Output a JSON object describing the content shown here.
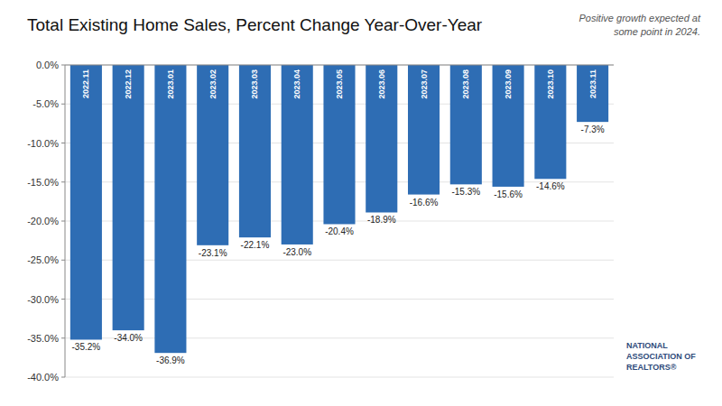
{
  "chart_data": {
    "type": "bar",
    "title": "Total Existing Home Sales, Percent Change Year-Over-Year",
    "annotation": "Positive growth expected at\nsome point in 2024.",
    "source": "NATIONAL\nASSOCIATION OF\nREALTORS®",
    "categories": [
      "2022.11",
      "2022.12",
      "2023.01",
      "2023.02",
      "2023.03",
      "2023.04",
      "2023.05",
      "2023.06",
      "2023.07",
      "2023.08",
      "2023.09",
      "2023.10",
      "2023.11"
    ],
    "values": [
      -35.2,
      -34.0,
      -36.9,
      -23.1,
      -22.1,
      -23.0,
      -20.4,
      -18.9,
      -16.6,
      -15.3,
      -15.6,
      -14.6,
      -7.3
    ],
    "value_labels": [
      "-35.2%",
      "-34.0%",
      "-36.9%",
      "-23.1%",
      "-22.1%",
      "-23.0%",
      "-20.4%",
      "-18.9%",
      "-16.6%",
      "-15.3%",
      "-15.6%",
      "-14.6%",
      "-7.3%"
    ],
    "color": "#2E6DB4",
    "ylim": [
      -40.0,
      0.0
    ],
    "yticks": [
      {
        "value": 0.0,
        "label": "0.0%"
      },
      {
        "value": -5.0,
        "label": "-5.0%"
      },
      {
        "value": -10.0,
        "label": "-10.0%"
      },
      {
        "value": -15.0,
        "label": "-15.0%"
      },
      {
        "value": -20.0,
        "label": "-20.0%"
      },
      {
        "value": -25.0,
        "label": "-25.0%"
      },
      {
        "value": -30.0,
        "label": "-30.0%"
      },
      {
        "value": -35.0,
        "label": "-35.0%"
      },
      {
        "value": -40.0,
        "label": "-40.0%"
      }
    ],
    "grid": true,
    "data_labels": true
  }
}
